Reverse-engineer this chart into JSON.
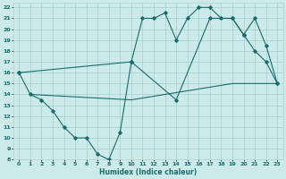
{
  "xlabel": "Humidex (Indice chaleur)",
  "bg_color": "#cceaea",
  "grid_color": "#aad4d4",
  "line_color": "#1a6b6b",
  "xlim": [
    -0.5,
    23.5
  ],
  "ylim": [
    8,
    22.4
  ],
  "xticks": [
    0,
    1,
    2,
    3,
    4,
    5,
    6,
    7,
    8,
    9,
    10,
    11,
    12,
    13,
    14,
    15,
    16,
    17,
    18,
    19,
    20,
    21,
    22,
    23
  ],
  "yticks": [
    8,
    9,
    10,
    11,
    12,
    13,
    14,
    15,
    16,
    17,
    18,
    19,
    20,
    21,
    22
  ],
  "line1_x": [
    0,
    1,
    2,
    3,
    4,
    5,
    6,
    7,
    8,
    9,
    10,
    11,
    12,
    13,
    14,
    15,
    16,
    17,
    18,
    19,
    20,
    21,
    22,
    23
  ],
  "line1_y": [
    16,
    14,
    13.5,
    12.5,
    11,
    10,
    10,
    8.5,
    8,
    10.5,
    17,
    21,
    21,
    21.5,
    19,
    21,
    22,
    22,
    21,
    21,
    19.5,
    18,
    17,
    15
  ],
  "line2_x": [
    0,
    10,
    14,
    17,
    19,
    20,
    21,
    22,
    23
  ],
  "line2_y": [
    16,
    17,
    13.5,
    21,
    21,
    19.5,
    21,
    18.5,
    15
  ],
  "line3_x": [
    1,
    10,
    19,
    23
  ],
  "line3_y": [
    14,
    13.5,
    15,
    15
  ]
}
